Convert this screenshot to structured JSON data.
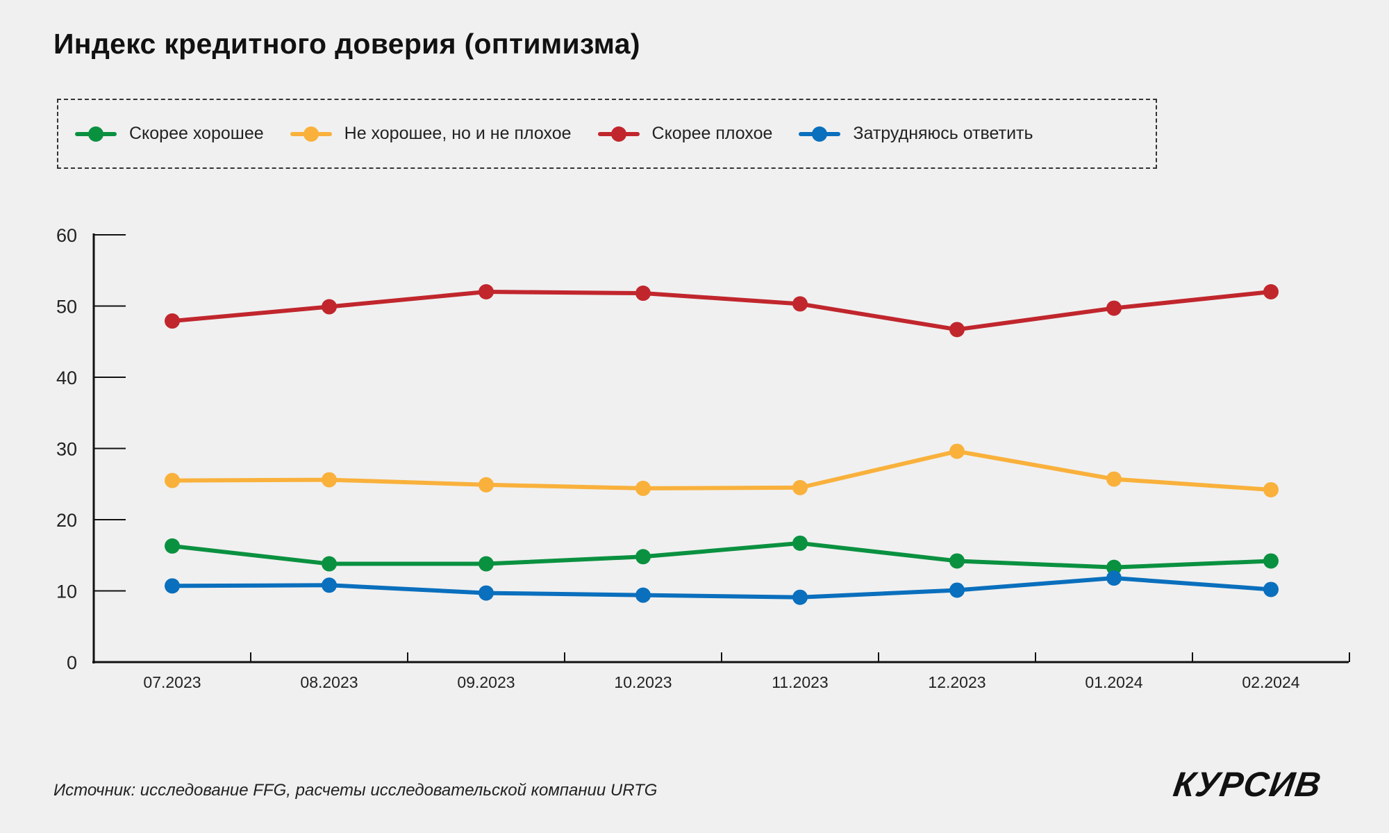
{
  "title": "Индекс кредитного доверия (оптимизма)",
  "source": "Источник: исследование FFG, расчеты исследовательской компании URTG",
  "logo": "КУРСИВ",
  "chart_data": {
    "type": "line",
    "title": "Индекс кредитного доверия (оптимизма)",
    "categories": [
      "07.2023",
      "08.2023",
      "09.2023",
      "10.2023",
      "11.2023",
      "12.2023",
      "01.2024",
      "02.2024"
    ],
    "ylim": [
      0,
      60
    ],
    "yticks": [
      0,
      10,
      20,
      30,
      40,
      50,
      60
    ],
    "grid": false,
    "legend_position": "top",
    "series": [
      {
        "name": "Скорее хорошее",
        "color": "#0a9140",
        "values": [
          16.3,
          13.8,
          13.8,
          14.8,
          16.7,
          14.2,
          13.3,
          14.2
        ]
      },
      {
        "name": "Не хорошее, но и не плохое",
        "color": "#f9b13c",
        "values": [
          25.5,
          25.6,
          24.9,
          24.4,
          24.5,
          29.6,
          25.7,
          24.2
        ]
      },
      {
        "name": "Скорее плохое",
        "color": "#c1262d",
        "values": [
          47.9,
          49.9,
          52.0,
          51.8,
          50.3,
          46.7,
          49.7,
          52.0
        ]
      },
      {
        "name": "Затрудняюсь ответить",
        "color": "#0a6fbd",
        "values": [
          10.7,
          10.8,
          9.7,
          9.4,
          9.1,
          10.1,
          11.8,
          10.2
        ]
      }
    ]
  }
}
